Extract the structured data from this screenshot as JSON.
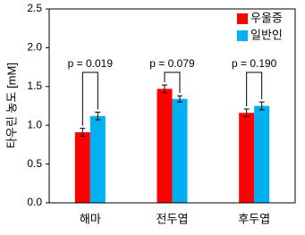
{
  "chart_data": {
    "type": "bar",
    "y_label": "타우린 농도 [mM]",
    "categories": [
      "해마",
      "전두엽",
      "후두엽"
    ],
    "series": [
      {
        "name": "우울증",
        "color": "#ff0000",
        "values": [
          0.91,
          1.47,
          1.16
        ],
        "errors": [
          0.05,
          0.05,
          0.05
        ]
      },
      {
        "name": "일반인",
        "color": "#00b0f0",
        "values": [
          1.12,
          1.34,
          1.25
        ],
        "errors": [
          0.05,
          0.04,
          0.05
        ]
      }
    ],
    "annotations": [
      "p = 0.019",
      "p = 0.079",
      "p = 0.190"
    ],
    "ylim": [
      0,
      2.5
    ],
    "yticks": [
      {
        "value": 0,
        "label": "0.0"
      },
      0.5,
      {
        "value": 1,
        "label": "1.0"
      },
      1.5,
      {
        "value": 2,
        "label": "2.0"
      },
      2.5
    ],
    "legend": "top-right"
  }
}
